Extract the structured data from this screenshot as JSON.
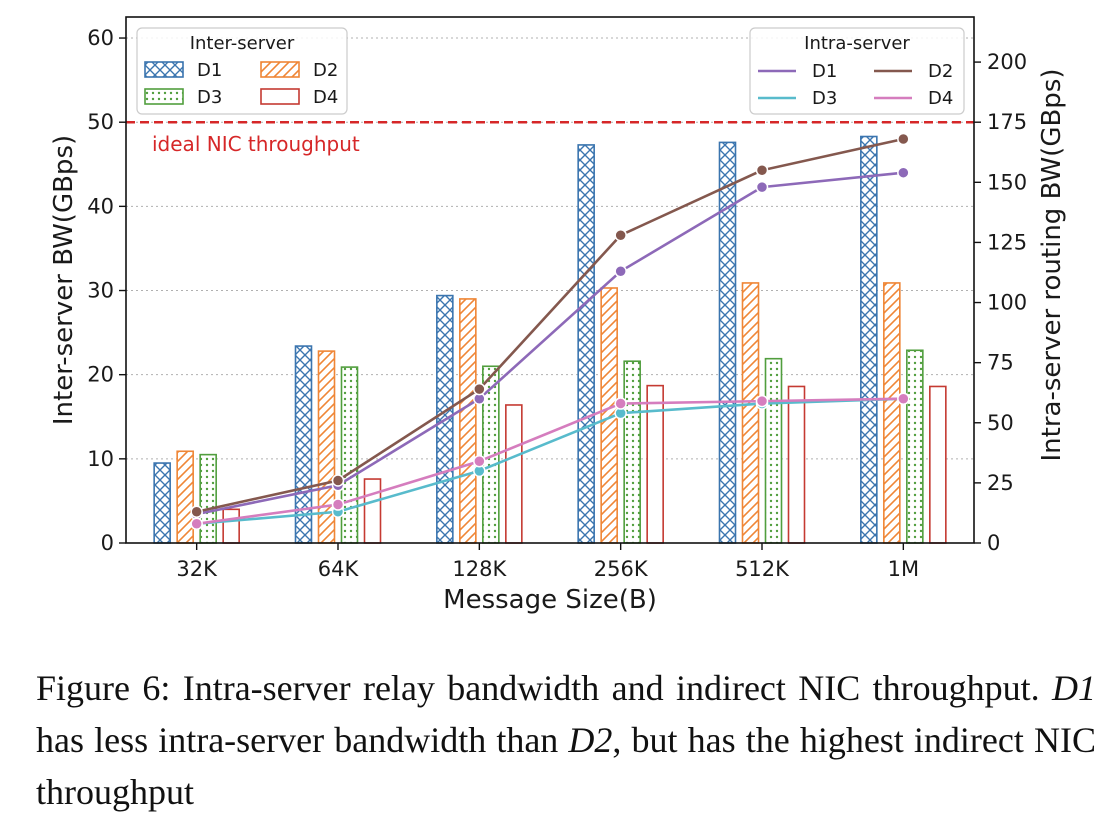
{
  "chart_data": {
    "type": "bar",
    "xlabel": "Message Size(B)",
    "ylabel": "Inter-server BW(GBps)",
    "y2label": "Intra-server routing BW(GBps)",
    "categories": [
      "32K",
      "64K",
      "128K",
      "256K",
      "512K",
      "1M"
    ],
    "ylim": [
      0,
      62.5
    ],
    "y2lim": [
      0,
      218.75
    ],
    "yticks": [
      0,
      10,
      20,
      30,
      40,
      50,
      60
    ],
    "y2ticks": [
      0,
      25,
      50,
      75,
      100,
      125,
      150,
      175,
      200
    ],
    "grid": true,
    "bar_legend_title": "Inter-server",
    "line_legend_title": "Intra-server",
    "bar_series": [
      {
        "name": "D1",
        "color": "#3b75af",
        "pattern": "crosshatch",
        "values": [
          9.5,
          23.4,
          29.4,
          47.3,
          47.6,
          48.3
        ]
      },
      {
        "name": "D2",
        "color": "#ef8636",
        "pattern": "diagonal",
        "values": [
          10.9,
          22.8,
          29.0,
          30.3,
          30.9,
          30.9
        ]
      },
      {
        "name": "D3",
        "color": "#519e3e",
        "pattern": "dots",
        "values": [
          10.5,
          20.9,
          21.0,
          21.6,
          21.9,
          22.9
        ]
      },
      {
        "name": "D4",
        "color": "#c53a32",
        "pattern": "none",
        "values": [
          4.0,
          7.6,
          16.4,
          18.7,
          18.6,
          18.6
        ]
      }
    ],
    "line_series": [
      {
        "name": "D1",
        "color": "#8d69b8",
        "values": [
          12,
          24,
          60,
          113,
          148,
          154
        ]
      },
      {
        "name": "D2",
        "color": "#84584e",
        "values": [
          13,
          26,
          64,
          128,
          155,
          168
        ]
      },
      {
        "name": "D3",
        "color": "#58bbcc",
        "values": [
          8,
          13,
          30,
          54,
          58,
          60
        ]
      },
      {
        "name": "D4",
        "color": "#d57dbe",
        "values": [
          8,
          16,
          34,
          58,
          59,
          60
        ]
      }
    ],
    "reference_line": {
      "value": 50,
      "label": "ideal NIC throughput",
      "color": "#d62728"
    },
    "legend_placement": [
      "top-left",
      "top-right"
    ]
  },
  "caption": {
    "prefix": "Figure 6: Intra-server relay bandwidth and indirect NIC throughput. ",
    "em1": "D1",
    "middle": " has less intra-server bandwidth than ",
    "em2": "D2",
    "suffix": ", but has the highest indirect NIC throughput"
  }
}
